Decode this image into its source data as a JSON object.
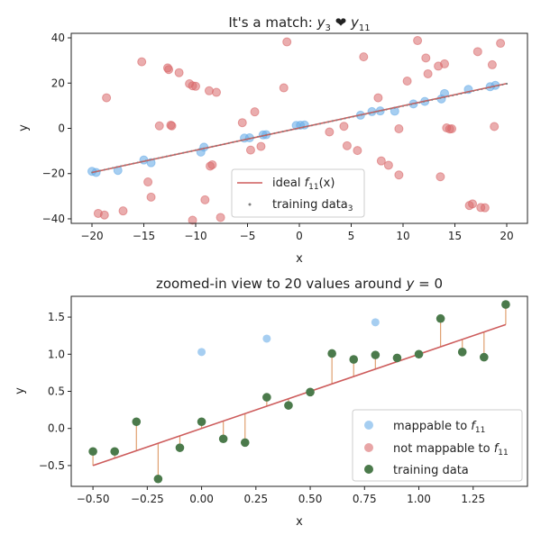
{
  "chart_data": [
    {
      "type": "scatter",
      "title_pre": "It's a match: ",
      "title_math_1": "y",
      "title_sub_1": "3",
      "title_heart": "❤",
      "title_math_2": "y",
      "title_sub_2": "11",
      "xlabel": "x",
      "ylabel": "y",
      "xlim": [
        -22,
        22
      ],
      "ylim": [
        -42,
        42
      ],
      "xticks": [
        -20,
        -15,
        -10,
        -5,
        0,
        5,
        10,
        15,
        20
      ],
      "yticks": [
        -40,
        -20,
        0,
        20,
        40
      ],
      "legend_position": "lower-center",
      "legend": {
        "ideal_pre": "ideal ",
        "ideal_math": "f",
        "ideal_sub": "11",
        "ideal_post": "(x)",
        "training_pre": "training data",
        "training_sub": "3"
      },
      "colors": {
        "ideal": "#cd5c5c",
        "mappable": "#6aaee8",
        "not_mappable": "#d9696b",
        "training": "#7f7f7f"
      },
      "ideal_line": {
        "x": [
          -20,
          20
        ],
        "y": [
          -19.5,
          19.8
        ]
      },
      "mappable": {
        "x": [
          -20,
          -19.6,
          -17.5,
          -15,
          -14.3,
          -9.5,
          -9.2,
          -5.3,
          -4.8,
          -3.5,
          -3.2,
          -0.3,
          0.1,
          0.5,
          5.9,
          7.0,
          7.8,
          9.2,
          11.0,
          12.1,
          13.7,
          14.0,
          16.3,
          18.4,
          18.9
        ],
        "y": [
          -19.0,
          -19.5,
          -18.6,
          -14.0,
          -15.2,
          -10.5,
          -8.3,
          -4.3,
          -4.2,
          -2.9,
          -2.8,
          1.3,
          1.4,
          1.5,
          5.8,
          7.4,
          7.7,
          7.6,
          10.8,
          11.9,
          13.0,
          15.4,
          17.2,
          18.4,
          19.0
        ]
      },
      "not_mappable": {
        "x": [
          -19.4,
          -18.8,
          -17.0,
          -18.6,
          -15.2,
          -14.6,
          -14.3,
          -13.5,
          -12.6,
          -12.7,
          -12.4,
          -12.3,
          -11.6,
          -10.6,
          -10.3,
          -10.3,
          -10.0,
          -9.1,
          -8.7,
          -8.6,
          -8.4,
          -8.0,
          -7.6,
          -5.5,
          -4.7,
          -4.3,
          -3.7,
          -1.5,
          -1.2,
          2.9,
          4.3,
          4.6,
          5.6,
          6.2,
          7.6,
          7.9,
          8.6,
          9.6,
          9.6,
          10.4,
          11.4,
          12.2,
          12.4,
          13.4,
          13.6,
          14.0,
          14.2,
          14.5,
          14.7,
          16.4,
          16.7,
          17.2,
          17.5,
          17.9,
          18.6,
          18.8,
          19.4
        ],
        "y": [
          -37.6,
          -38.3,
          -36.5,
          13.5,
          29.4,
          -23.7,
          -30.4,
          1.1,
          26.0,
          26.7,
          1.4,
          1.1,
          24.6,
          19.7,
          18.8,
          -40.6,
          18.6,
          -31.6,
          16.6,
          -16.7,
          -16.1,
          15.9,
          -39.4,
          2.5,
          -9.6,
          7.3,
          -8.0,
          17.9,
          38.2,
          -1.6,
          0.9,
          -7.7,
          -9.8,
          31.6,
          13.5,
          -14.4,
          -16.3,
          -0.2,
          -20.6,
          20.9,
          38.8,
          31.1,
          24.1,
          27.5,
          -21.4,
          28.5,
          0.2,
          -0.3,
          -0.2,
          -34.1,
          -33.4,
          33.9,
          -35.0,
          -35.1,
          28.1,
          0.8,
          37.6
        ]
      },
      "training": {
        "x": [
          -20,
          -16,
          -12,
          -8,
          -4,
          0,
          4,
          8,
          12,
          16,
          20
        ],
        "y": [
          -19.5,
          -15.5,
          -11.6,
          -7.7,
          -3.7,
          0.1,
          4.0,
          7.9,
          11.8,
          15.7,
          19.7
        ]
      }
    },
    {
      "type": "scatter",
      "title_pre": "zoomed-in view to 20 values around ",
      "title_math": "y",
      "title_post": " = 0",
      "xlabel": "x",
      "ylabel": "y",
      "xlim": [
        -0.6,
        1.5
      ],
      "ylim": [
        -0.78,
        1.78
      ],
      "xticks": [
        "-0.50",
        "-0.25",
        "0.00",
        "0.25",
        "0.50",
        "0.75",
        "1.00",
        "1.25"
      ],
      "xtick_values": [
        -0.5,
        -0.25,
        0.0,
        0.25,
        0.5,
        0.75,
        1.0,
        1.25
      ],
      "yticks": [
        "-0.5",
        "0.0",
        "0.5",
        "1.0",
        "1.5"
      ],
      "ytick_values": [
        -0.5,
        0.0,
        0.5,
        1.0,
        1.5
      ],
      "legend_position": "lower-right",
      "legend": {
        "mappable_pre": "mappable to ",
        "mappable_math": "f",
        "mappable_sub": "11",
        "not_mappable_pre": "not mappable to ",
        "not_mappable_math": "f",
        "not_mappable_sub": "11",
        "training_label": "training data"
      },
      "colors": {
        "ideal": "#cd5c5c",
        "residual": "#e0a070",
        "mappable": "#6aaee8",
        "not_mappable": "#d9696b",
        "training": "#4b7a4b"
      },
      "ideal_line": {
        "x": [
          -0.5,
          1.4
        ],
        "y": [
          -0.5,
          1.4
        ]
      },
      "mappable": {
        "x": [
          0.0,
          0.3,
          0.8
        ],
        "y": [
          1.03,
          1.21,
          1.43
        ]
      },
      "training": {
        "x": [
          -0.5,
          -0.4,
          -0.3,
          -0.2,
          -0.1,
          0.0,
          0.1,
          0.2,
          0.3,
          0.4,
          0.5,
          0.6,
          0.7,
          0.8,
          0.9,
          1.0,
          1.1,
          1.2,
          1.3,
          1.4
        ],
        "y": [
          -0.31,
          -0.31,
          0.09,
          -0.68,
          -0.26,
          0.09,
          -0.14,
          -0.19,
          0.42,
          0.31,
          0.49,
          1.01,
          0.93,
          0.99,
          0.95,
          1.0,
          1.48,
          1.03,
          0.96,
          1.67
        ]
      }
    }
  ]
}
